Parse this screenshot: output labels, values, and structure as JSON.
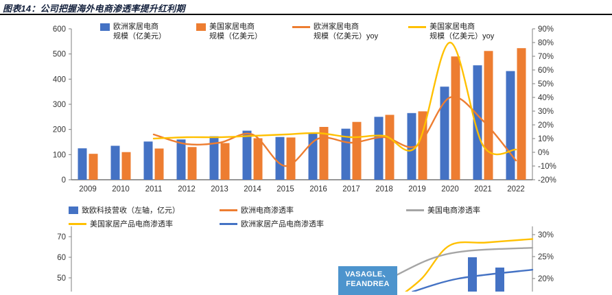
{
  "header": {
    "title": "图表14：公司把握海外电商渗透率提升红利期"
  },
  "chart_data": [
    {
      "id": "overseas-home-ecommerce-scale",
      "type": "bar+line",
      "categories": [
        "2009",
        "2010",
        "2011",
        "2012",
        "2013",
        "2014",
        "2015",
        "2016",
        "2017",
        "2018",
        "2019",
        "2020",
        "2021",
        "2022"
      ],
      "bar_series": [
        {
          "name": "欧洲家居电商规模（亿美元）",
          "color": "#4472C4",
          "values": [
            125,
            135,
            152,
            160,
            173,
            195,
            170,
            186,
            203,
            250,
            265,
            370,
            455,
            432
          ]
        },
        {
          "name": "美国家居电商规模（亿美元）",
          "color": "#ED7D31",
          "values": [
            103,
            110,
            124,
            130,
            146,
            165,
            168,
            210,
            230,
            258,
            272,
            490,
            512,
            523
          ]
        }
      ],
      "line_series": [
        {
          "name": "欧洲家居电商规模（亿美元）yoy",
          "color": "#ED7D31",
          "axis": "right",
          "values": [
            null,
            null,
            13,
            6,
            7,
            13,
            -10,
            10,
            7,
            11,
            5,
            40,
            23,
            -6
          ]
        },
        {
          "name": "美国家居电商规模（亿美元）yoy",
          "color": "#FFC000",
          "axis": "right",
          "values": [
            null,
            null,
            10,
            11,
            11,
            12,
            13,
            14,
            11,
            12,
            5,
            80,
            5,
            2
          ]
        }
      ],
      "left_axis": {
        "min": 0,
        "max": 600,
        "step": 100,
        "ticks": [
          "600",
          "500",
          "400",
          "300",
          "200",
          "100",
          "0"
        ]
      },
      "right_axis": {
        "min": -20,
        "max": 90,
        "step": 10,
        "ticks": [
          "90%",
          "80%",
          "70%",
          "60%",
          "50%",
          "40%",
          "30%",
          "20%",
          "10%",
          "0%",
          "-10%",
          "-20%"
        ]
      },
      "legend": [
        {
          "label_line1": "欧洲家居电商",
          "label_line2": "规模（亿美元）",
          "marker": "square",
          "color": "#4472C4"
        },
        {
          "label_line1": "美国家居电商",
          "label_line2": "规模（亿美元）",
          "marker": "square",
          "color": "#ED7D31"
        },
        {
          "label_line1": "欧洲家居电商",
          "label_line2": "规模（亿美元）yoy",
          "marker": "line",
          "color": "#ED7D31"
        },
        {
          "label_line1": "美国家居电商",
          "label_line2": "规模（亿美元）yoy",
          "marker": "line",
          "color": "#FFC000"
        }
      ]
    },
    {
      "id": "ecommerce-penetration-rate",
      "type": "bar+line",
      "partial": true,
      "legend_rows": [
        [
          {
            "label": "致欧科技营收（左轴，亿元）",
            "marker": "square",
            "color": "#4472C4"
          },
          {
            "label": "欧洲电商渗透率",
            "marker": "line",
            "color": "#ED7D31"
          },
          {
            "label": "美国电商渗透率",
            "marker": "line",
            "color": "#A5A5A5"
          }
        ],
        [
          {
            "label": "美国家居产品电商渗透率",
            "marker": "line",
            "color": "#FFC000"
          },
          {
            "label": "欧洲家居产品电商渗透率",
            "marker": "line",
            "color": "#4472C4"
          }
        ]
      ],
      "left_axis_visible_ticks": [
        "70",
        "60",
        "50"
      ],
      "right_axis_visible_ticks": [
        "30%",
        "25%",
        "20%"
      ],
      "annotation": {
        "text_line1": "VASAGLE、",
        "text_line2": "FEANDREA",
        "bg": "#4D94CD",
        "text_color": "#FFFFFF"
      },
      "visible_bars": [
        {
          "value": 60
        },
        {
          "value": 55
        }
      ],
      "visible_lines": [
        {
          "name": "美国家居产品电商渗透率",
          "color": "#FFC000",
          "points": [
            {
              "f": 0.7,
              "v": 15
            },
            {
              "f": 0.76,
              "v": 20
            },
            {
              "f": 0.82,
              "v": 27.5
            },
            {
              "f": 0.9,
              "v": 28.2
            },
            {
              "f": 1.0,
              "v": 29
            }
          ]
        },
        {
          "name": "美国电商渗透率",
          "color": "#A5A5A5",
          "points": [
            {
              "f": 0.7,
              "v": 20.5
            },
            {
              "f": 0.78,
              "v": 24.5
            },
            {
              "f": 0.86,
              "v": 26.3
            },
            {
              "f": 1.0,
              "v": 27
            }
          ]
        },
        {
          "name": "欧洲家居产品电商渗透率",
          "color": "#4472C4",
          "points": [
            {
              "f": 0.74,
              "v": 17
            },
            {
              "f": 0.84,
              "v": 20
            },
            {
              "f": 1.0,
              "v": 22
            }
          ]
        }
      ]
    }
  ]
}
